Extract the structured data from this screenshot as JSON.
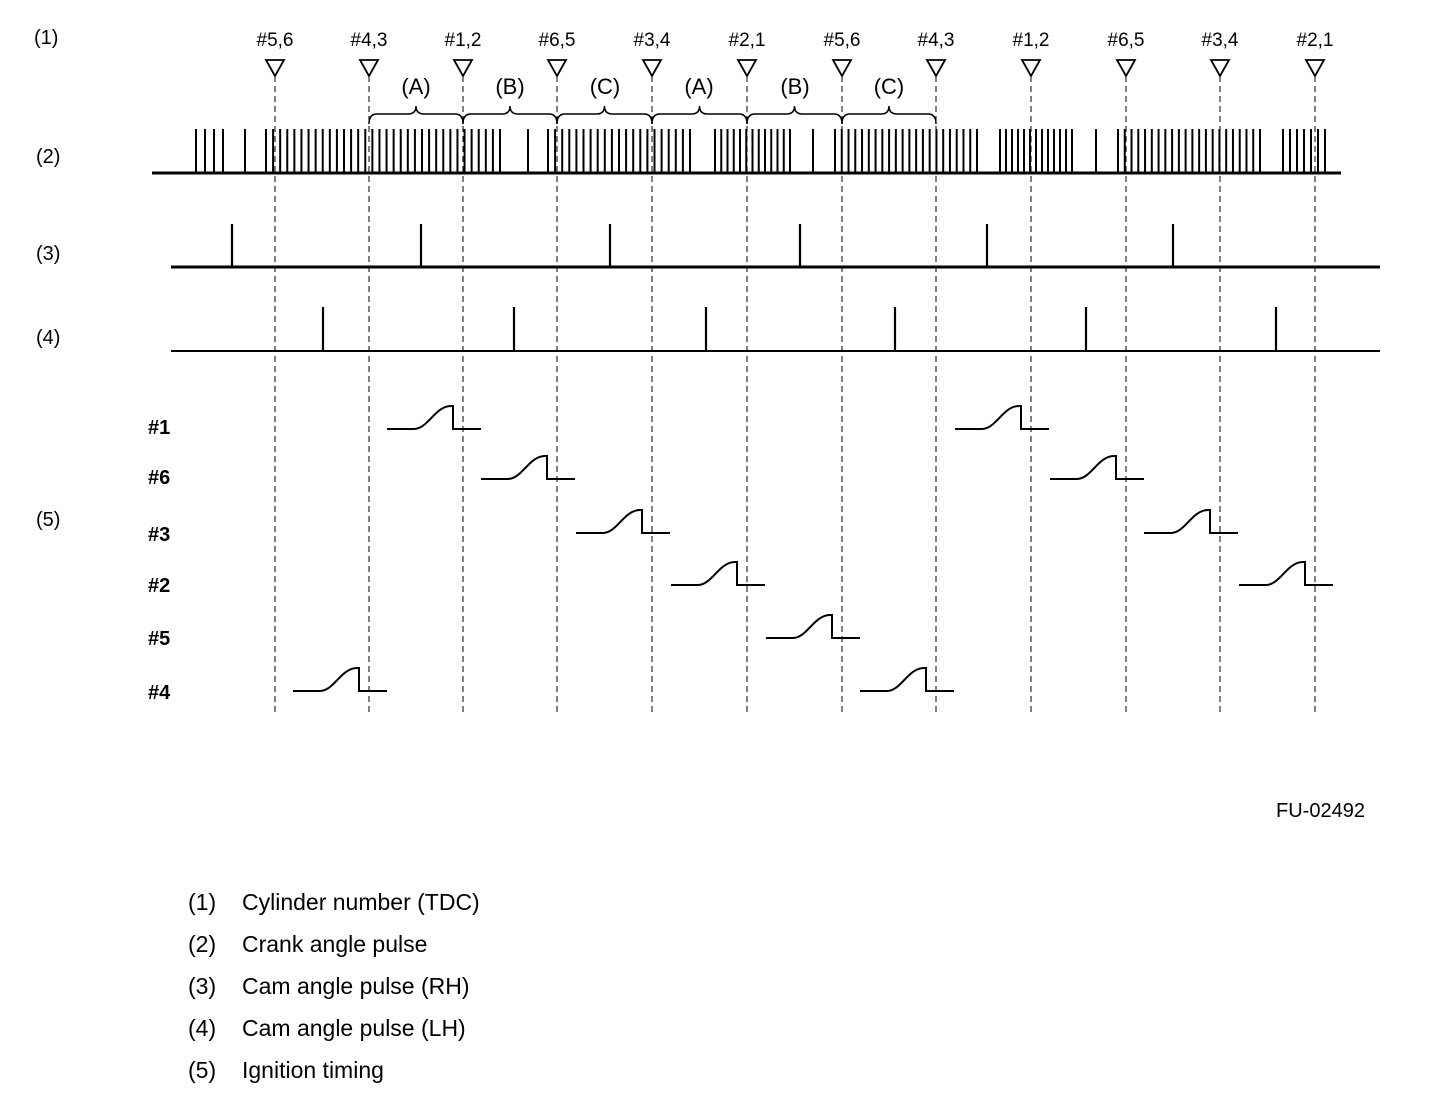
{
  "row_labels": [
    "(1)",
    "(2)",
    "(3)",
    "(4)",
    "(5)"
  ],
  "tdc_marks": [
    "#5,6",
    "#4,3",
    "#1,2",
    "#6,5",
    "#3,4",
    "#2,1",
    "#5,6",
    "#4,3",
    "#1,2",
    "#6,5",
    "#3,4",
    "#2,1"
  ],
  "segments": [
    "(A)",
    "(B)",
    "(C)",
    "(A)",
    "(B)",
    "(C)"
  ],
  "ignition_cylinders": [
    "#1",
    "#6",
    "#3",
    "#2",
    "#5",
    "#4"
  ],
  "ignition_events": [
    {
      "cylinder": "#1",
      "at_tdc_index": [
        2,
        8
      ]
    },
    {
      "cylinder": "#6",
      "at_tdc_index": [
        3,
        9
      ]
    },
    {
      "cylinder": "#3",
      "at_tdc_index": [
        4,
        10
      ]
    },
    {
      "cylinder": "#2",
      "at_tdc_index": [
        5,
        11
      ]
    },
    {
      "cylinder": "#5",
      "at_tdc_index": [
        6
      ]
    },
    {
      "cylinder": "#4",
      "at_tdc_index": [
        1,
        7
      ]
    }
  ],
  "figure_id": "FU-02492",
  "legend": [
    {
      "num": "(1)",
      "text": "Cylinder number (TDC)"
    },
    {
      "num": "(2)",
      "text": "Crank angle pulse"
    },
    {
      "num": "(3)",
      "text": "Cam angle pulse (RH)"
    },
    {
      "num": "(4)",
      "text": "Cam angle pulse (LH)"
    },
    {
      "num": "(5)",
      "text": "Ignition timing"
    }
  ]
}
